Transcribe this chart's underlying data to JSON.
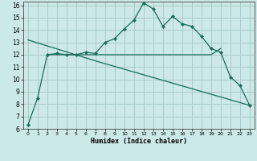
{
  "title": "",
  "xlabel": "Humidex (Indice chaleur)",
  "ylabel": "",
  "bg_color": "#cce8e8",
  "grid_color": "#aacccc",
  "line_color": "#1a6b5a",
  "xlim": [
    -0.5,
    23.5
  ],
  "ylim": [
    6,
    16.3
  ],
  "yticks": [
    6,
    7,
    8,
    9,
    10,
    11,
    12,
    13,
    14,
    15,
    16
  ],
  "xticks": [
    0,
    1,
    2,
    3,
    4,
    5,
    6,
    7,
    8,
    9,
    10,
    11,
    12,
    13,
    14,
    15,
    16,
    17,
    18,
    19,
    20,
    21,
    22,
    23
  ],
  "line1_x": [
    0,
    1,
    2,
    3,
    4,
    5,
    6,
    7,
    8,
    9,
    10,
    11,
    12,
    13,
    14,
    15,
    16,
    17,
    18,
    19,
    20,
    21,
    22,
    23
  ],
  "line1_y": [
    6.3,
    8.5,
    12.0,
    12.1,
    12.0,
    12.0,
    12.2,
    12.1,
    13.0,
    13.3,
    14.1,
    14.8,
    16.2,
    15.7,
    14.3,
    15.1,
    14.5,
    14.3,
    13.5,
    12.5,
    12.2,
    10.2,
    9.5,
    7.9
  ],
  "line2_x": [
    2,
    3,
    4,
    5,
    6,
    7,
    8,
    9,
    10,
    11,
    12,
    13,
    14,
    15,
    16,
    17,
    18,
    19,
    20
  ],
  "line2_y": [
    12.0,
    12.0,
    12.0,
    12.0,
    12.0,
    12.0,
    12.0,
    12.0,
    12.0,
    12.0,
    12.0,
    12.0,
    12.0,
    12.0,
    12.0,
    12.0,
    12.0,
    12.0,
    12.5
  ],
  "line3_x": [
    0,
    7,
    23
  ],
  "line3_y": [
    13.2,
    11.5,
    7.9
  ]
}
